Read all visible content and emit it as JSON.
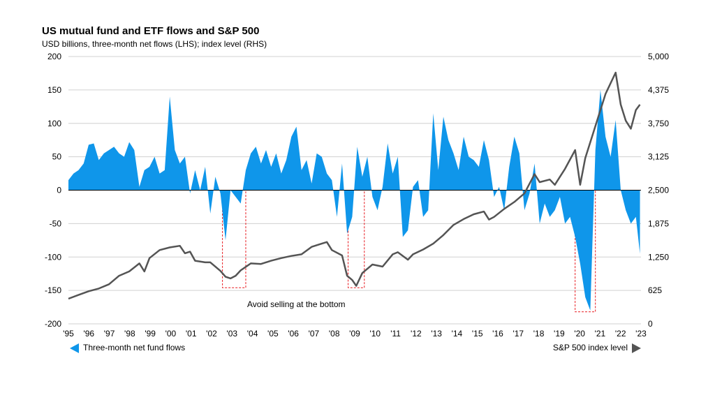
{
  "title": "US mutual fund and ETF flows and S&P 500",
  "subtitle": "USD billions, three-month net flows (LHS); index level (RHS)",
  "annotation": "Avoid selling at the bottom",
  "legend": {
    "flows": "Three-month net fund flows",
    "index": "S&P 500 index level"
  },
  "colors": {
    "flows": "#0f96ea",
    "index": "#545454",
    "highlight": "#e8191f"
  },
  "chart_data": {
    "type": "area",
    "x_tick_labels": [
      "'95",
      "'96",
      "'97",
      "'98",
      "'99",
      "'00",
      "'01",
      "'02",
      "'03",
      "'04",
      "'05",
      "'06",
      "'07",
      "'08",
      "'09",
      "'10",
      "'11",
      "'12",
      "'13",
      "'14",
      "'15",
      "'16",
      "'17",
      "'18",
      "'19",
      "'20",
      "'21",
      "'22",
      "'23"
    ],
    "x_range": [
      1995.0,
      2023.25
    ],
    "y_left_ticks": [
      "200",
      "150",
      "100",
      "50",
      "0",
      "-50",
      "-100",
      "-150",
      "-200"
    ],
    "y_left_range": [
      -200,
      200
    ],
    "y_right_ticks": [
      "5,000",
      "4,375",
      "3,750",
      "3,125",
      "2,500",
      "1,875",
      "1,250",
      "625",
      "0"
    ],
    "y_right_range": [
      0,
      5000
    ],
    "grid": true,
    "highlight_periods": [
      [
        2002.6,
        2003.75
      ],
      [
        2008.8,
        2009.6
      ],
      [
        2020.0,
        2021.0
      ]
    ],
    "series": [
      {
        "name": "Three-month net fund flows",
        "axis": "left",
        "x": [
          1995.0,
          1995.25,
          1995.5,
          1995.75,
          1996.0,
          1996.25,
          1996.5,
          1996.75,
          1997.0,
          1997.25,
          1997.5,
          1997.75,
          1998.0,
          1998.25,
          1998.5,
          1998.75,
          1999.0,
          1999.25,
          1999.5,
          1999.75,
          2000.0,
          2000.25,
          2000.5,
          2000.75,
          2001.0,
          2001.25,
          2001.5,
          2001.75,
          2002.0,
          2002.25,
          2002.5,
          2002.75,
          2003.0,
          2003.25,
          2003.5,
          2003.75,
          2004.0,
          2004.25,
          2004.5,
          2004.75,
          2005.0,
          2005.25,
          2005.5,
          2005.75,
          2006.0,
          2006.25,
          2006.5,
          2006.75,
          2007.0,
          2007.25,
          2007.5,
          2007.75,
          2008.0,
          2008.25,
          2008.5,
          2008.75,
          2009.0,
          2009.25,
          2009.5,
          2009.75,
          2010.0,
          2010.25,
          2010.5,
          2010.75,
          2011.0,
          2011.25,
          2011.5,
          2011.75,
          2012.0,
          2012.25,
          2012.5,
          2012.75,
          2013.0,
          2013.25,
          2013.5,
          2013.75,
          2014.0,
          2014.25,
          2014.5,
          2014.75,
          2015.0,
          2015.25,
          2015.5,
          2015.75,
          2016.0,
          2016.25,
          2016.5,
          2016.75,
          2017.0,
          2017.25,
          2017.5,
          2017.75,
          2018.0,
          2018.25,
          2018.5,
          2018.75,
          2019.0,
          2019.25,
          2019.5,
          2019.75,
          2020.0,
          2020.25,
          2020.5,
          2020.75,
          2021.0,
          2021.25,
          2021.5,
          2021.75,
          2022.0,
          2022.25,
          2022.5,
          2022.75,
          2023.0,
          2023.2
        ],
        "values": [
          15,
          25,
          30,
          40,
          68,
          70,
          45,
          55,
          60,
          65,
          55,
          50,
          72,
          60,
          5,
          30,
          35,
          50,
          25,
          30,
          140,
          60,
          40,
          50,
          -5,
          30,
          0,
          35,
          -35,
          20,
          -5,
          -75,
          0,
          -10,
          -20,
          30,
          55,
          65,
          40,
          60,
          35,
          55,
          25,
          45,
          80,
          95,
          30,
          45,
          10,
          55,
          50,
          25,
          15,
          -40,
          40,
          -65,
          -40,
          65,
          20,
          50,
          -10,
          -30,
          5,
          70,
          25,
          50,
          -70,
          -60,
          5,
          15,
          -40,
          -30,
          115,
          30,
          110,
          75,
          55,
          30,
          80,
          50,
          45,
          35,
          75,
          45,
          -10,
          5,
          -30,
          35,
          80,
          55,
          -30,
          -5,
          40,
          -50,
          -20,
          -40,
          -30,
          -10,
          -50,
          -40,
          -70,
          -110,
          -160,
          -180,
          60,
          150,
          80,
          50,
          105,
          0,
          -30,
          -50,
          -40,
          -95
        ]
      },
      {
        "name": "S&P 500 index level",
        "axis": "right",
        "x": [
          1995.0,
          1995.5,
          1996.0,
          1996.5,
          1997.0,
          1997.5,
          1998.0,
          1998.5,
          1998.75,
          1999.0,
          1999.5,
          2000.0,
          2000.5,
          2000.75,
          2001.0,
          2001.25,
          2001.75,
          2002.0,
          2002.5,
          2002.75,
          2003.0,
          2003.25,
          2003.5,
          2004.0,
          2004.5,
          2005.0,
          2005.5,
          2006.0,
          2006.5,
          2007.0,
          2007.5,
          2007.75,
          2008.0,
          2008.5,
          2008.75,
          2009.0,
          2009.2,
          2009.5,
          2010.0,
          2010.5,
          2011.0,
          2011.25,
          2011.75,
          2012.0,
          2012.5,
          2013.0,
          2013.5,
          2014.0,
          2014.5,
          2015.0,
          2015.5,
          2015.75,
          2016.0,
          2016.5,
          2017.0,
          2017.5,
          2018.0,
          2018.25,
          2018.75,
          2019.0,
          2019.5,
          2020.0,
          2020.25,
          2020.5,
          2021.0,
          2021.5,
          2022.0,
          2022.25,
          2022.5,
          2022.75,
          2023.0,
          2023.2
        ],
        "values": [
          470,
          540,
          610,
          660,
          740,
          900,
          980,
          1130,
          980,
          1230,
          1380,
          1430,
          1460,
          1320,
          1350,
          1180,
          1150,
          1150,
          990,
          880,
          850,
          900,
          1000,
          1130,
          1120,
          1180,
          1230,
          1270,
          1300,
          1440,
          1500,
          1530,
          1380,
          1280,
          900,
          820,
          710,
          950,
          1110,
          1070,
          1300,
          1340,
          1200,
          1300,
          1390,
          1500,
          1660,
          1850,
          1960,
          2050,
          2100,
          1950,
          2000,
          2150,
          2280,
          2440,
          2800,
          2650,
          2700,
          2600,
          2900,
          3250,
          2600,
          3100,
          3700,
          4300,
          4700,
          4100,
          3800,
          3650,
          4000,
          4100
        ]
      }
    ]
  }
}
